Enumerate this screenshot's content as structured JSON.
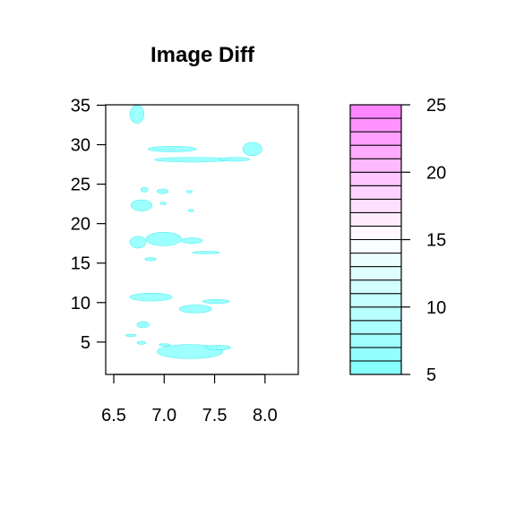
{
  "chart_data": {
    "type": "heatmap",
    "title": "Image Diff",
    "xlabel": "",
    "ylabel": "",
    "xlim": [
      6.42,
      8.33
    ],
    "ylim": [
      0.9,
      35.05
    ],
    "x_ticks": [
      6.5,
      7.0,
      7.5,
      8.0
    ],
    "x_tick_labels": [
      "6.5",
      "7.0",
      "7.5",
      "8.0"
    ],
    "y_ticks": [
      5,
      10,
      15,
      20,
      25,
      30,
      35
    ],
    "y_tick_labels": [
      "5",
      "10",
      "15",
      "20",
      "25",
      "30",
      "35"
    ],
    "grid": false,
    "regions": [
      {
        "x": [
          6.66,
          6.8
        ],
        "y": [
          32.7,
          35.0
        ],
        "value": 6
      },
      {
        "x": [
          6.84,
          7.32
        ],
        "y": [
          29.1,
          29.8
        ],
        "value": 6
      },
      {
        "x": [
          6.9,
          7.65
        ],
        "y": [
          27.8,
          28.4
        ],
        "value": 6
      },
      {
        "x": [
          7.55,
          7.85
        ],
        "y": [
          27.9,
          28.4
        ],
        "value": 6
      },
      {
        "x": [
          7.78,
          7.97
        ],
        "y": [
          28.6,
          30.3
        ],
        "value": 6
      },
      {
        "x": [
          6.77,
          6.84
        ],
        "y": [
          24.0,
          24.6
        ],
        "value": 6
      },
      {
        "x": [
          6.93,
          7.04
        ],
        "y": [
          23.8,
          24.4
        ],
        "value": 6
      },
      {
        "x": [
          7.22,
          7.28
        ],
        "y": [
          23.9,
          24.2
        ],
        "value": 6
      },
      {
        "x": [
          6.67,
          6.88
        ],
        "y": [
          21.6,
          23.0
        ],
        "value": 6
      },
      {
        "x": [
          6.96,
          7.02
        ],
        "y": [
          22.4,
          22.7
        ],
        "value": 6
      },
      {
        "x": [
          7.24,
          7.29
        ],
        "y": [
          21.5,
          21.8
        ],
        "value": 6
      },
      {
        "x": [
          6.66,
          6.82
        ],
        "y": [
          16.9,
          18.4
        ],
        "value": 6
      },
      {
        "x": [
          6.82,
          7.17
        ],
        "y": [
          17.2,
          18.9
        ],
        "value": 6
      },
      {
        "x": [
          7.17,
          7.38
        ],
        "y": [
          17.5,
          18.2
        ],
        "value": 6
      },
      {
        "x": [
          6.81,
          6.92
        ],
        "y": [
          15.3,
          15.7
        ],
        "value": 6
      },
      {
        "x": [
          7.28,
          7.55
        ],
        "y": [
          16.2,
          16.5
        ],
        "value": 6
      },
      {
        "x": [
          6.66,
          7.08
        ],
        "y": [
          10.2,
          11.2
        ],
        "value": 6
      },
      {
        "x": [
          7.15,
          7.47
        ],
        "y": [
          8.7,
          9.7
        ],
        "value": 6
      },
      {
        "x": [
          7.38,
          7.65
        ],
        "y": [
          9.9,
          10.4
        ],
        "value": 6
      },
      {
        "x": [
          6.73,
          6.85
        ],
        "y": [
          6.8,
          7.6
        ],
        "value": 6
      },
      {
        "x": [
          6.62,
          6.72
        ],
        "y": [
          5.7,
          6.0
        ],
        "value": 6
      },
      {
        "x": [
          6.73,
          6.82
        ],
        "y": [
          4.7,
          5.1
        ],
        "value": 6
      },
      {
        "x": [
          6.95,
          7.06
        ],
        "y": [
          4.5,
          4.8
        ],
        "value": 6
      },
      {
        "x": [
          6.93,
          7.58
        ],
        "y": [
          2.9,
          4.7
        ],
        "value": 6
      },
      {
        "x": [
          7.4,
          7.66
        ],
        "y": [
          4.0,
          4.6
        ],
        "value": 6
      }
    ],
    "colorbar": {
      "min": 5,
      "max": 25,
      "ticks": [
        5,
        10,
        15,
        20,
        25
      ],
      "tick_labels": [
        "5",
        "10",
        "15",
        "20",
        "25"
      ],
      "low_color": "#80ffff",
      "mid_color": "#ffffff",
      "high_color": "#ff80ff",
      "levels": 20
    }
  }
}
